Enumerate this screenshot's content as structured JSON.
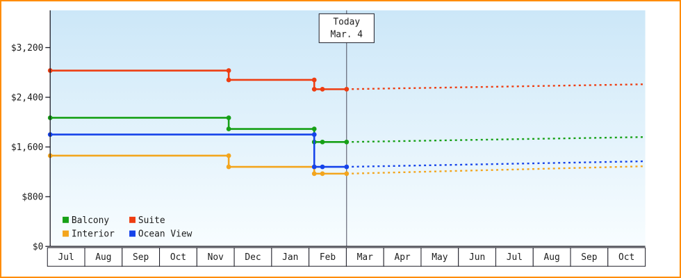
{
  "page": {
    "border_color": "#ff8c00",
    "background": "#ffffff"
  },
  "chart_data": {
    "type": "line",
    "months": [
      "Jul",
      "Aug",
      "Sep",
      "Oct",
      "Nov",
      "Dec",
      "Jan",
      "Feb",
      "Mar",
      "Apr",
      "May",
      "Jun",
      "Jul",
      "Aug",
      "Sep",
      "Oct"
    ],
    "y_ticks": [
      {
        "label": "$0",
        "value": 0
      },
      {
        "label": "$800",
        "value": 800
      },
      {
        "label": "$1,600",
        "value": 1600
      },
      {
        "label": "$2,400",
        "value": 2400
      },
      {
        "label": "$3,200",
        "value": 3200
      }
    ],
    "y_max": 3800,
    "today": {
      "lines": [
        "Today",
        "Mar. 4"
      ],
      "month_index": 7.97
    },
    "series": [
      {
        "name": "Balcony",
        "color": "#16a016",
        "steps": [
          [
            0,
            2070
          ],
          [
            4.8,
            1890
          ],
          [
            7.1,
            1680
          ],
          [
            7.32,
            1680
          ]
        ],
        "forecast_end": 1760
      },
      {
        "name": "Suite",
        "color": "#ee3d11",
        "steps": [
          [
            0,
            2830
          ],
          [
            4.8,
            2680
          ],
          [
            7.1,
            2530
          ],
          [
            7.32,
            2530
          ]
        ],
        "forecast_end": 2610
      },
      {
        "name": "Interior",
        "color": "#f3a51d",
        "steps": [
          [
            0,
            1460
          ],
          [
            4.8,
            1280
          ],
          [
            7.1,
            1170
          ],
          [
            7.32,
            1170
          ]
        ],
        "forecast_end": 1290
      },
      {
        "name": "Ocean View",
        "color": "#1543ea",
        "steps": [
          [
            0,
            1800
          ],
          [
            7.1,
            1280
          ],
          [
            7.32,
            1280
          ]
        ],
        "forecast_end": 1370
      }
    ],
    "legend_rows": [
      [
        "Balcony",
        "Suite"
      ],
      [
        "Interior",
        "Ocean View"
      ]
    ],
    "colors": {
      "axis": "#1a1a24",
      "text": "#1c1c1c",
      "today_line": "#4a4a5a",
      "plot_bg_top": "#cce7f8",
      "plot_bg_bottom": "#f8fdff",
      "cell_bg": "#ffffff",
      "today_box_bg": "#ffffff"
    }
  }
}
